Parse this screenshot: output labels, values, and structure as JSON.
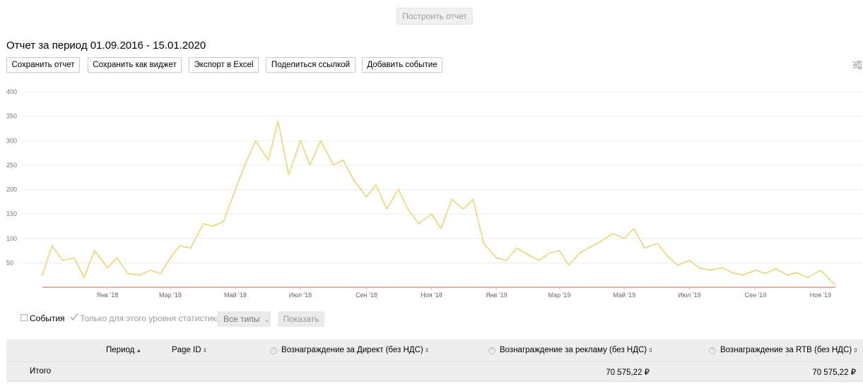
{
  "build_button": "Построить отчет",
  "report_title": "Отчет за период 01.09.2016 - 15.01.2020",
  "toolbar": {
    "save_report": "Сохранить отчет",
    "save_widget": "Сохранить как виджет",
    "export_excel": "Экспорт в Excel",
    "share_link": "Поделиться ссылкой",
    "add_event": "Добавить событие"
  },
  "chart_data": {
    "type": "line",
    "title": "",
    "xlabel": "",
    "ylabel": "",
    "ylim": [
      0,
      400
    ],
    "yticks": [
      50,
      100,
      150,
      200,
      250,
      300,
      350,
      400
    ],
    "x_tick_labels": [
      "Янв '18",
      "Мар '18",
      "Май '18",
      "Июл '18",
      "Сен '18",
      "Ноя '18",
      "Янв '19",
      "Мар '19",
      "Май '19",
      "Июл '19",
      "Сен '19",
      "Ноя '19"
    ],
    "grid": true,
    "series": [
      {
        "color": "#e8d675",
        "x": [
          "2017-11-01",
          "2017-11-10",
          "2017-11-20",
          "2017-12-01",
          "2017-12-10",
          "2017-12-20",
          "2018-01-01",
          "2018-01-10",
          "2018-01-20",
          "2018-02-01",
          "2018-02-10",
          "2018-02-20",
          "2018-03-01",
          "2018-03-10",
          "2018-03-20",
          "2018-04-01",
          "2018-04-10",
          "2018-04-20",
          "2018-05-01",
          "2018-05-10",
          "2018-05-20",
          "2018-06-01",
          "2018-06-10",
          "2018-06-20",
          "2018-07-01",
          "2018-07-10",
          "2018-07-20",
          "2018-08-01",
          "2018-08-10",
          "2018-08-20",
          "2018-09-01",
          "2018-09-10",
          "2018-09-20",
          "2018-10-01",
          "2018-10-10",
          "2018-10-20",
          "2018-11-01",
          "2018-11-10",
          "2018-11-20",
          "2018-12-01",
          "2018-12-10",
          "2018-12-20",
          "2019-01-01",
          "2019-01-10",
          "2019-01-20",
          "2019-02-01",
          "2019-02-10",
          "2019-02-20",
          "2019-03-01",
          "2019-03-10",
          "2019-03-20",
          "2019-04-01",
          "2019-04-10",
          "2019-04-20",
          "2019-05-01",
          "2019-05-10",
          "2019-05-20",
          "2019-06-01",
          "2019-06-10",
          "2019-06-20",
          "2019-07-01",
          "2019-07-10",
          "2019-07-20",
          "2019-08-01",
          "2019-08-10",
          "2019-08-20",
          "2019-09-01",
          "2019-09-10",
          "2019-09-20",
          "2019-10-01",
          "2019-10-10",
          "2019-10-20",
          "2019-11-01",
          "2019-11-10",
          "2019-11-15"
        ],
        "values": [
          25,
          85,
          55,
          60,
          20,
          75,
          40,
          60,
          28,
          25,
          35,
          28,
          60,
          85,
          80,
          130,
          125,
          135,
          200,
          250,
          300,
          260,
          340,
          230,
          300,
          250,
          300,
          250,
          260,
          220,
          185,
          210,
          160,
          200,
          160,
          130,
          150,
          120,
          180,
          160,
          180,
          90,
          60,
          55,
          80,
          65,
          55,
          70,
          75,
          45,
          70,
          85,
          95,
          110,
          100,
          120,
          80,
          90,
          65,
          45,
          55,
          40,
          35,
          40,
          30,
          25,
          35,
          28,
          38,
          25,
          30,
          20,
          35,
          15,
          5
        ]
      },
      {
        "color": "#d9826f",
        "x": [
          "2017-11-01",
          "2019-11-15"
        ],
        "values": [
          0,
          0
        ]
      }
    ]
  },
  "controls": {
    "events_label": "События",
    "level_only_label": "Только для этого уровня статистики",
    "all_types": "Все типы",
    "show": "Показать"
  },
  "table": {
    "headers": {
      "period": "Период",
      "page_id": "Page ID",
      "direct_reward": "Вознаграждение за Директ (без НДС)",
      "ad_reward": "Вознаграждение за рекламу (без НДС)",
      "rtb_reward": "Вознаграждение за RTB (без НДС)"
    },
    "total_row": {
      "label": "Итого",
      "ad_reward": "70 575,22 ₽",
      "rtb_reward": "70 575,22 ₽"
    }
  }
}
